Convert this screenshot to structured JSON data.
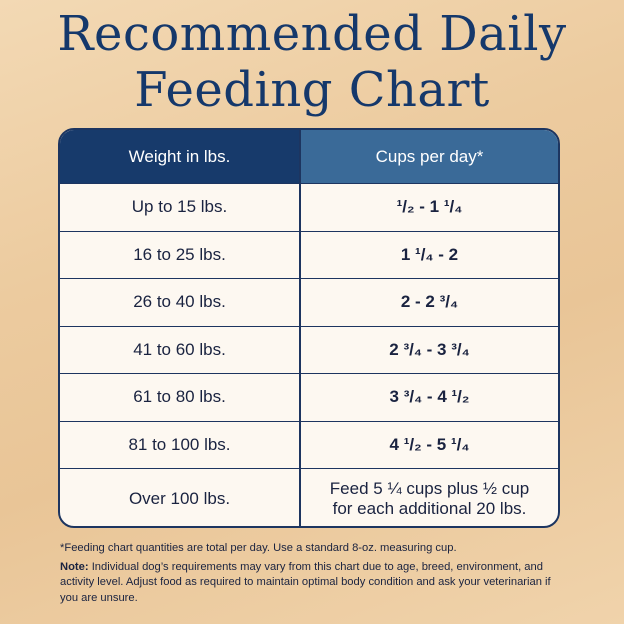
{
  "title_line1": "Recommended Daily",
  "title_line2": "Feeding Chart",
  "header": {
    "col1": "Weight in lbs.",
    "col2": "Cups per day*"
  },
  "rows": [
    {
      "weight": "Up to 15 lbs.",
      "cups": "¹/₂ - 1 ¹/₄"
    },
    {
      "weight": "16 to 25 lbs.",
      "cups": "1 ¹/₄ - 2"
    },
    {
      "weight": "26 to 40 lbs.",
      "cups": "2 - 2 ³/₄"
    },
    {
      "weight": "41 to 60 lbs.",
      "cups": "2 ³/₄ - 3 ³/₄"
    },
    {
      "weight": "61 to 80 lbs.",
      "cups": "3 ³/₄ - 4 ¹/₂"
    },
    {
      "weight": "81 to 100 lbs.",
      "cups": "4 ¹/₂ - 5 ¹/₄"
    },
    {
      "weight": "Over 100 lbs.",
      "cups": "Feed 5 ¼ cups plus ½ cup\nfor each additional 20 lbs."
    }
  ],
  "footnote": "*Feeding chart quantities are total per day. Use a standard 8-oz. measuring cup.",
  "note_label": "Note:",
  "note_text": " Individual dog’s requirements may vary from this chart due to age, breed, environment, and activity level. Adjust food as required to maintain optimal body condition and ask your veterinarian if you are unsure.",
  "colors": {
    "header_dark": "#173a6b",
    "header_light": "#3a6a98",
    "title": "#15386b"
  }
}
